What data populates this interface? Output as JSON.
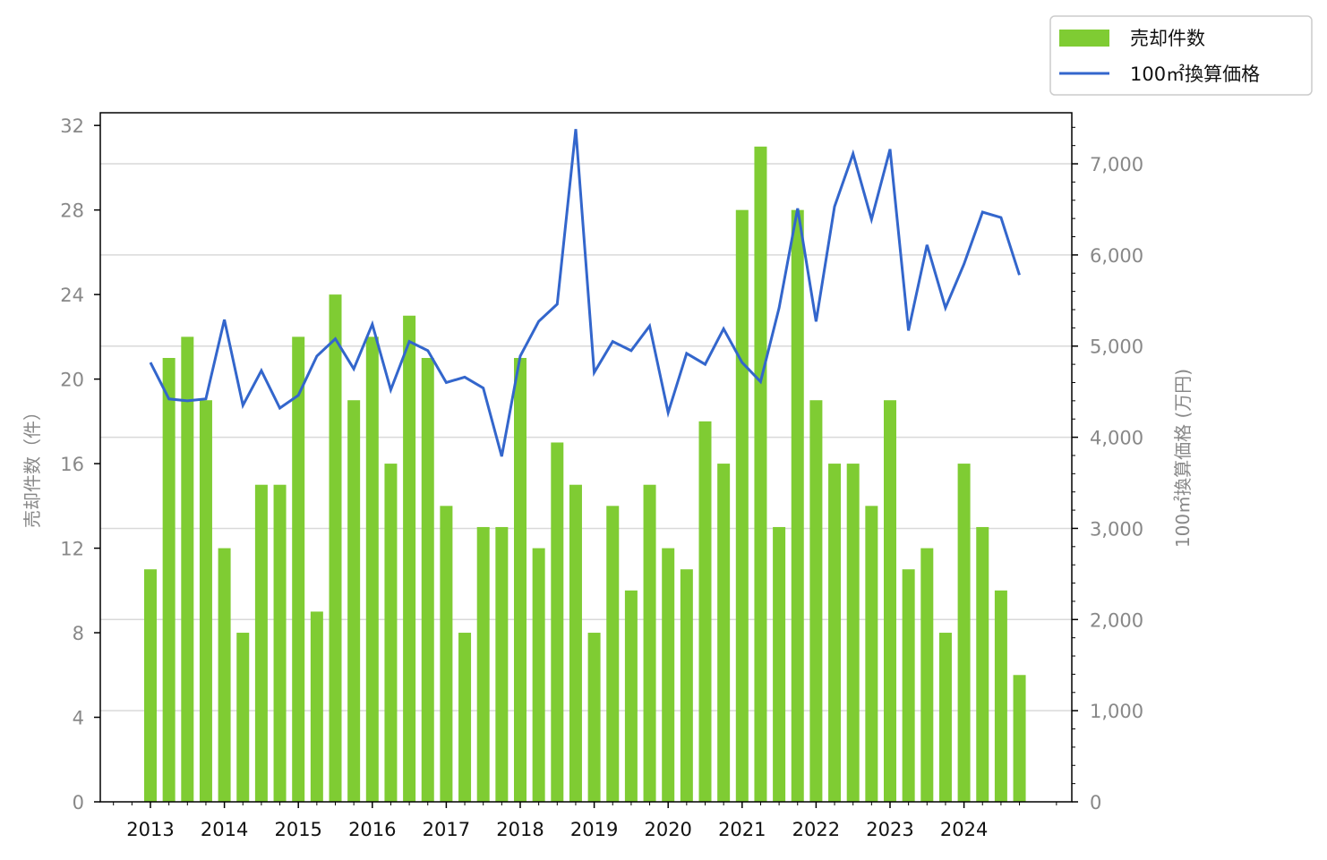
{
  "chart_data": {
    "type": "bar+line",
    "x": [
      "2013-Q1",
      "2013-Q2",
      "2013-Q3",
      "2013-Q4",
      "2014-Q1",
      "2014-Q2",
      "2014-Q3",
      "2014-Q4",
      "2015-Q1",
      "2015-Q2",
      "2015-Q3",
      "2015-Q4",
      "2016-Q1",
      "2016-Q2",
      "2016-Q3",
      "2016-Q4",
      "2017-Q1",
      "2017-Q2",
      "2017-Q3",
      "2017-Q4",
      "2018-Q1",
      "2018-Q2",
      "2018-Q3",
      "2018-Q4",
      "2019-Q1",
      "2019-Q2",
      "2019-Q3",
      "2019-Q4",
      "2020-Q1",
      "2020-Q2",
      "2020-Q3",
      "2020-Q4",
      "2021-Q1",
      "2021-Q2",
      "2021-Q3",
      "2021-Q4",
      "2022-Q1",
      "2022-Q2",
      "2022-Q3",
      "2022-Q4",
      "2023-Q1",
      "2023-Q2",
      "2023-Q3",
      "2023-Q4",
      "2024-Q1",
      "2024-Q2",
      "2024-Q3",
      "2024-Q4"
    ],
    "x_tick_labels": [
      "2013",
      "2014",
      "2015",
      "2016",
      "2017",
      "2018",
      "2019",
      "2020",
      "2021",
      "2022",
      "2023",
      "2024"
    ],
    "series": [
      {
        "name": "売却件数",
        "type": "bar",
        "axis": "left",
        "color": "#7fcc33",
        "values": [
          11,
          21,
          22,
          19,
          12,
          8,
          15,
          15,
          22,
          9,
          24,
          19,
          22,
          16,
          23,
          21,
          14,
          8,
          13,
          13,
          21,
          12,
          17,
          15,
          8,
          14,
          10,
          15,
          12,
          11,
          18,
          16,
          28,
          31,
          13,
          28,
          19,
          16,
          16,
          14,
          19,
          11,
          12,
          8,
          16,
          13,
          10,
          6
        ]
      },
      {
        "name": "100㎡換算価格",
        "type": "line",
        "axis": "right",
        "color": "#3366cc",
        "values": [
          4820,
          4420,
          4400,
          4420,
          5290,
          4350,
          4730,
          4320,
          4460,
          4890,
          5080,
          4750,
          5240,
          4520,
          5050,
          4950,
          4600,
          4660,
          4540,
          3790,
          4890,
          5270,
          5460,
          7380,
          4710,
          5050,
          4950,
          5220,
          4270,
          4920,
          4800,
          5190,
          4820,
          4610,
          5420,
          6510,
          5270,
          6530,
          7110,
          6390,
          7160,
          5170,
          6110,
          5420,
          5900,
          6470,
          6410,
          5780
        ]
      }
    ],
    "y_left": {
      "label": "売却件数（件）",
      "ylim": [
        0,
        32.6
      ],
      "ticks": [
        0,
        4,
        8,
        12,
        16,
        20,
        24,
        28,
        32
      ]
    },
    "y_right": {
      "label": "100㎡換算価格 (万円)",
      "ylim": [
        0,
        7560
      ],
      "ticks": [
        0,
        1000,
        2000,
        3000,
        4000,
        5000,
        6000,
        7000
      ],
      "tick_labels": [
        "0",
        "1,000",
        "2,000",
        "3,000",
        "4,000",
        "5,000",
        "6,000",
        "7,000"
      ]
    },
    "grid": "horizontal (right axis ticks)",
    "legend": {
      "placement": "top-right, outside plot",
      "entries": [
        "売却件数",
        "100㎡換算価格"
      ]
    }
  }
}
